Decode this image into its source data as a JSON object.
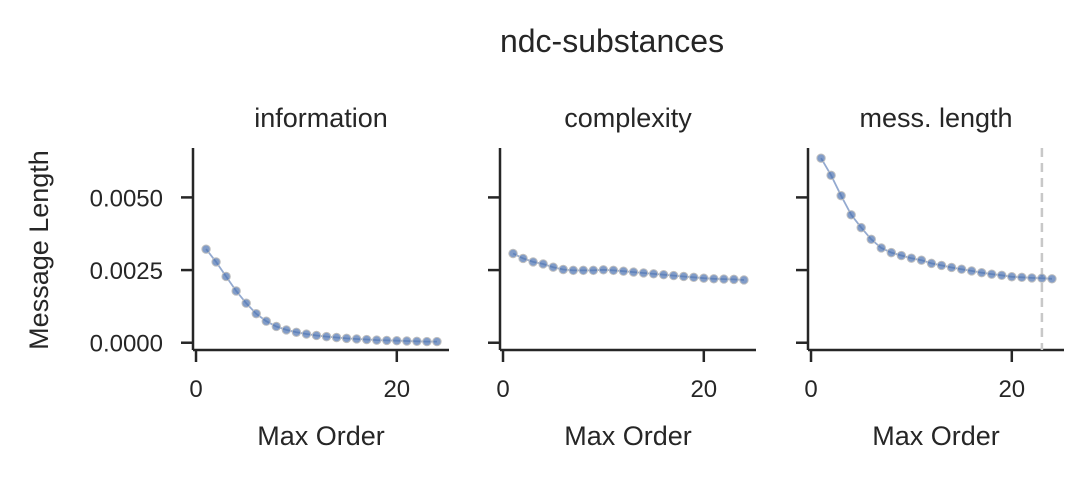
{
  "figure": {
    "title": "ndc-substances",
    "ylabel": "Message Length",
    "colors": {
      "series": "#4c72b0",
      "axis": "#262626",
      "marker_line": "#bfbfbf"
    }
  },
  "chart_data": [
    {
      "type": "line",
      "title": "information",
      "xlabel": "Max Order",
      "ylabel": "Message Length",
      "x_ticks": [
        0,
        20
      ],
      "y_ticks": [
        "0.0000",
        "0.0025",
        "0.0050"
      ],
      "y_tick_values": [
        0.0,
        0.0025,
        0.005
      ],
      "xlim": [
        -0.3,
        25.2
      ],
      "ylim": [
        -0.00025,
        0.0067
      ],
      "grid": false,
      "x": [
        1,
        2,
        3,
        4,
        5,
        6,
        7,
        8,
        9,
        10,
        11,
        12,
        13,
        14,
        15,
        16,
        17,
        18,
        19,
        20,
        21,
        22,
        23,
        24
      ],
      "values": [
        0.00322,
        0.00278,
        0.00228,
        0.00178,
        0.00136,
        0.001,
        0.00074,
        0.00056,
        0.00044,
        0.00036,
        0.0003,
        0.00025,
        0.00021,
        0.00018,
        0.00015,
        0.00013,
        0.00011,
        9e-05,
        8e-05,
        7e-05,
        6e-05,
        5e-05,
        4e-05,
        4e-05
      ]
    },
    {
      "type": "line",
      "title": "complexity",
      "xlabel": "Max Order",
      "x_ticks": [
        0,
        20
      ],
      "xlim": [
        -0.3,
        25.2
      ],
      "ylim": [
        -0.00025,
        0.0067
      ],
      "grid": false,
      "x": [
        1,
        2,
        3,
        4,
        5,
        6,
        7,
        8,
        9,
        10,
        11,
        12,
        13,
        14,
        15,
        16,
        17,
        18,
        19,
        20,
        21,
        22,
        23,
        24
      ],
      "values": [
        0.00307,
        0.0029,
        0.00278,
        0.00271,
        0.0026,
        0.00252,
        0.00249,
        0.00249,
        0.00249,
        0.00251,
        0.00249,
        0.00246,
        0.00243,
        0.0024,
        0.00237,
        0.00234,
        0.00231,
        0.00228,
        0.00225,
        0.00222,
        0.0022,
        0.00219,
        0.00218,
        0.00216
      ]
    },
    {
      "type": "line",
      "title": "mess. length",
      "xlabel": "Max Order",
      "x_ticks": [
        0,
        20
      ],
      "xlim": [
        -0.3,
        25.2
      ],
      "ylim": [
        -0.00025,
        0.0067
      ],
      "grid": false,
      "vline_x": 23,
      "x": [
        1,
        2,
        3,
        4,
        5,
        6,
        7,
        8,
        9,
        10,
        11,
        12,
        13,
        14,
        15,
        16,
        17,
        18,
        19,
        20,
        21,
        22,
        23,
        24
      ],
      "values": [
        0.00635,
        0.00576,
        0.00506,
        0.0044,
        0.00396,
        0.00356,
        0.00326,
        0.0031,
        0.003,
        0.00291,
        0.00284,
        0.00273,
        0.00266,
        0.00259,
        0.00253,
        0.00247,
        0.00241,
        0.00236,
        0.00232,
        0.00227,
        0.00225,
        0.00223,
        0.00222,
        0.0022
      ]
    }
  ]
}
